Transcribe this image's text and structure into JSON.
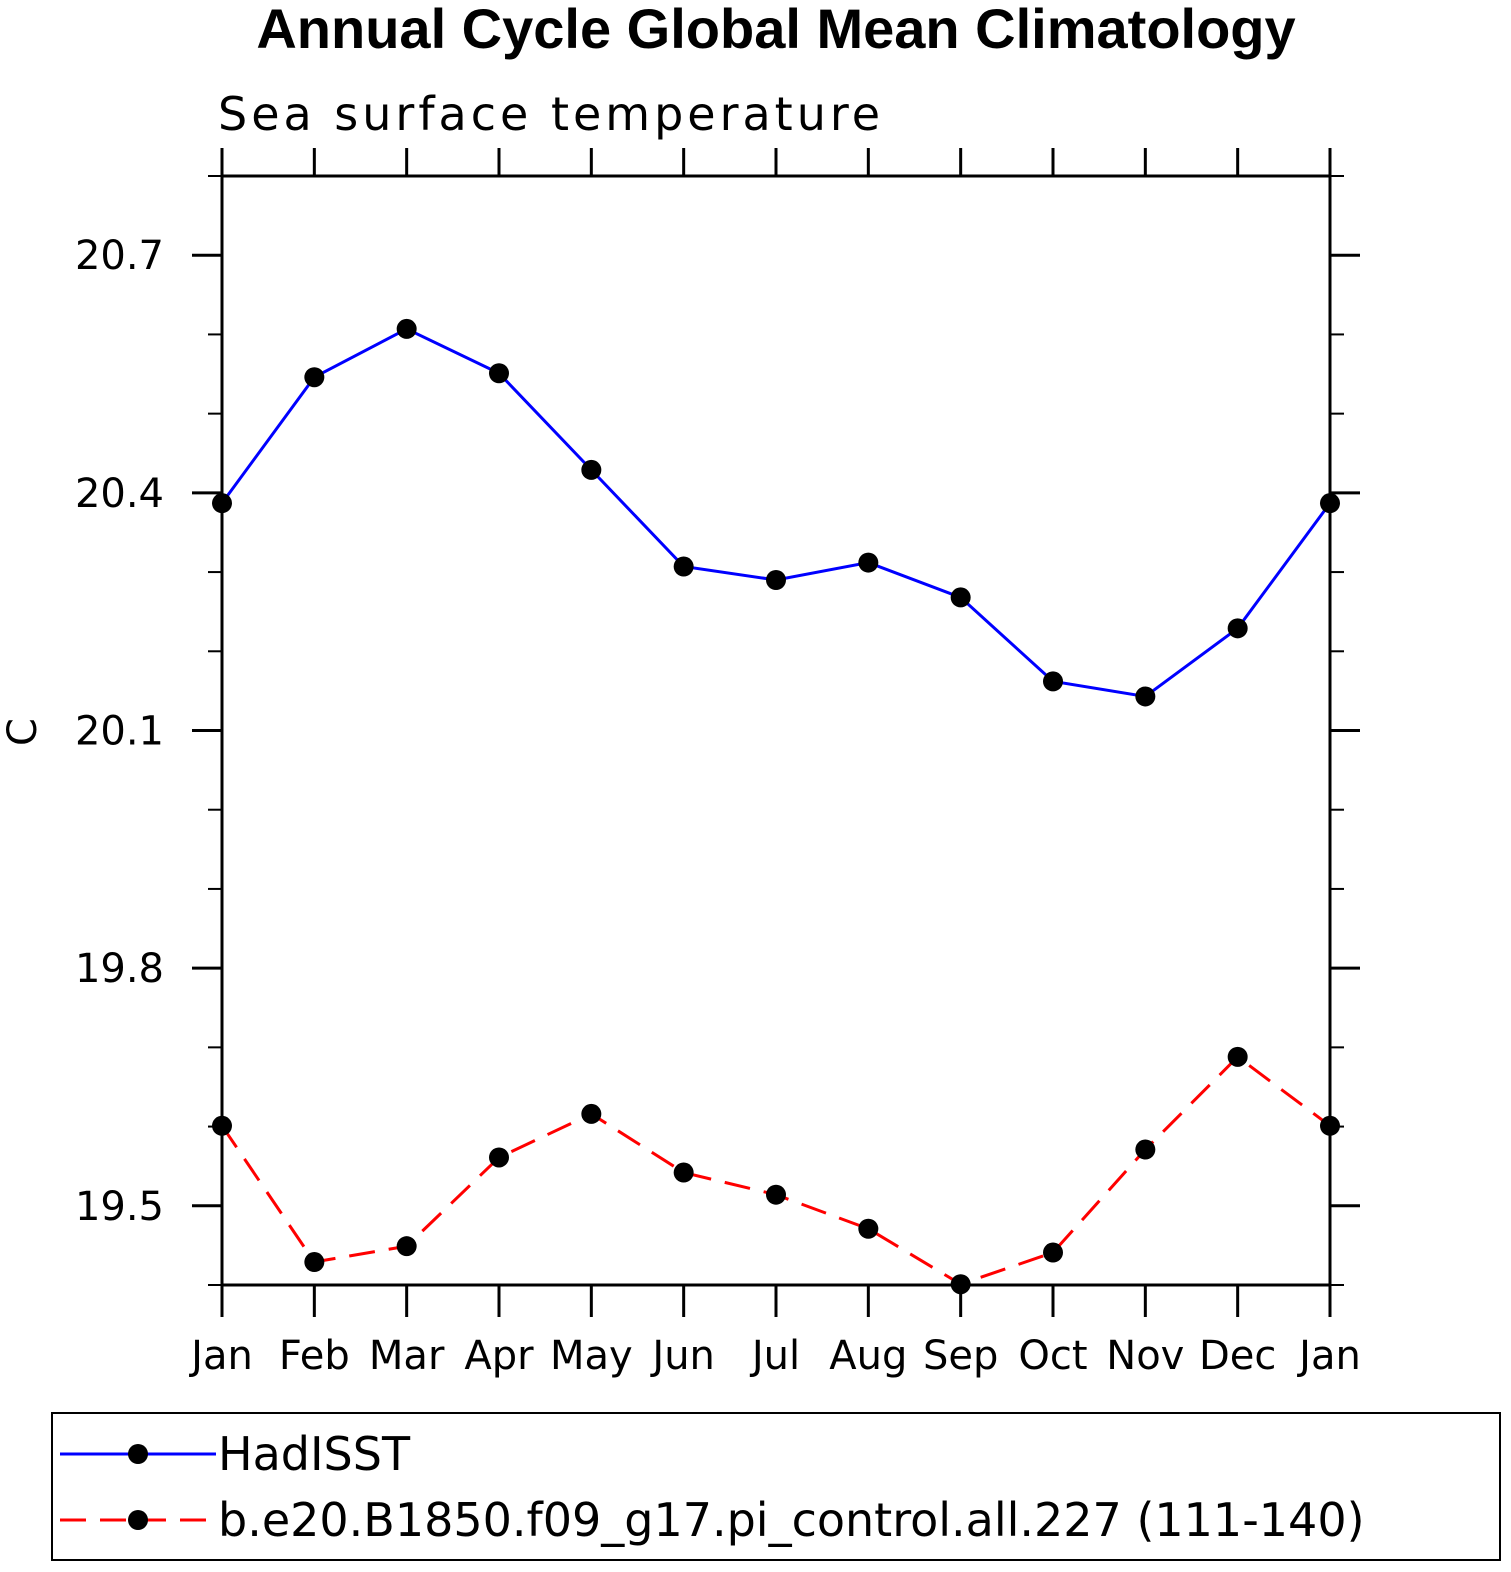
{
  "chart_data": {
    "type": "line",
    "title": "Annual Cycle Global Mean Climatology",
    "subtitle": "Sea surface temperature",
    "xlabel": "",
    "ylabel": "C",
    "categories": [
      "Jan",
      "Feb",
      "Mar",
      "Apr",
      "May",
      "Jun",
      "Jul",
      "Aug",
      "Sep",
      "Oct",
      "Nov",
      "Dec",
      "Jan"
    ],
    "ylim": [
      19.4,
      20.8
    ],
    "yticks": [
      19.5,
      19.8,
      20.1,
      20.4,
      20.7
    ],
    "ytick_labels": [
      "19.5",
      "19.8",
      "20.1",
      "20.4",
      "20.7"
    ],
    "yminor_step": 0.1,
    "grid": false,
    "legend_position": "bottom",
    "series": [
      {
        "name": "HadISST",
        "color": "#0000ff",
        "dash": "solid",
        "marker": "filled-circle",
        "values": [
          20.387,
          20.546,
          20.607,
          20.551,
          20.429,
          20.307,
          20.29,
          20.312,
          20.268,
          20.162,
          20.143,
          20.229,
          20.387
        ]
      },
      {
        "name": "b.e20.B1850.f09_g17.pi_control.all.227 (111-140)",
        "color": "#ff0000",
        "dash": "dashed",
        "marker": "filled-circle",
        "values": [
          19.601,
          19.429,
          19.449,
          19.561,
          19.616,
          19.542,
          19.514,
          19.471,
          19.401,
          19.441,
          19.571,
          19.688,
          19.601
        ]
      }
    ]
  }
}
